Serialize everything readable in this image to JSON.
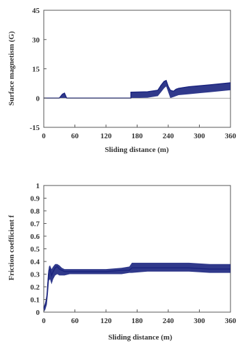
{
  "chart_data": [
    {
      "type": "line",
      "xlabel": "Sliding distance (m)",
      "ylabel": "Surface magnetism (G)",
      "xlim": [
        0,
        360
      ],
      "ylim": [
        -15,
        45
      ],
      "xticks": [
        0,
        60,
        120,
        180,
        240,
        300,
        360
      ],
      "yticks": [
        -15,
        0,
        15,
        30,
        45
      ],
      "color": "#1a237e",
      "series": [
        {
          "x": [
            0,
            30,
            36,
            40,
            44,
            60,
            120,
            140,
            168,
            168,
            200,
            220,
            226,
            232,
            236,
            240,
            244,
            250,
            255,
            260,
            280,
            300,
            320,
            340,
            360
          ],
          "y": [
            0,
            0,
            2.0,
            2.5,
            0,
            0,
            0,
            0,
            0,
            3.0,
            3.2,
            4.0,
            6.5,
            8.5,
            9.0,
            6.0,
            4.0,
            3.5,
            4.5,
            5.0,
            5.8,
            6.3,
            6.8,
            7.3,
            7.8
          ],
          "y_low": [
            0,
            0,
            0,
            0,
            0,
            0,
            0,
            0,
            0,
            0,
            0.2,
            1.0,
            3.0,
            5.0,
            6.0,
            3.0,
            0,
            0.5,
            1.0,
            1.5,
            2.0,
            2.5,
            3.0,
            3.5,
            4.0
          ]
        }
      ]
    },
    {
      "type": "line",
      "xlabel": "Sliding distance (m)",
      "ylabel": "Friction coefficient f",
      "xlim": [
        0,
        360
      ],
      "ylim": [
        0,
        1
      ],
      "xticks": [
        0,
        60,
        120,
        180,
        240,
        300,
        360
      ],
      "yticks": [
        0,
        0.1,
        0.2,
        0.3,
        0.4,
        0.5,
        0.6,
        0.7,
        0.8,
        0.9,
        1
      ],
      "color": "#1a237e",
      "series": [
        {
          "x": [
            0,
            3,
            6,
            8,
            10,
            12,
            15,
            18,
            22,
            26,
            30,
            35,
            40,
            50,
            60,
            90,
            120,
            150,
            165,
            170,
            200,
            240,
            280,
            320,
            360
          ],
          "y": [
            0.03,
            0.06,
            0.12,
            0.24,
            0.33,
            0.34,
            0.29,
            0.32,
            0.35,
            0.36,
            0.34,
            0.33,
            0.32,
            0.32,
            0.32,
            0.32,
            0.32,
            0.33,
            0.33,
            0.35,
            0.35,
            0.35,
            0.35,
            0.34,
            0.34
          ],
          "y_low": [
            0.0,
            0.02,
            0.06,
            0.15,
            0.25,
            0.26,
            0.22,
            0.26,
            0.29,
            0.3,
            0.29,
            0.29,
            0.29,
            0.3,
            0.3,
            0.3,
            0.3,
            0.3,
            0.31,
            0.31,
            0.32,
            0.32,
            0.32,
            0.31,
            0.31
          ],
          "y_high": [
            0.04,
            0.08,
            0.15,
            0.3,
            0.36,
            0.37,
            0.34,
            0.36,
            0.38,
            0.38,
            0.37,
            0.35,
            0.34,
            0.34,
            0.34,
            0.34,
            0.34,
            0.35,
            0.36,
            0.39,
            0.39,
            0.39,
            0.39,
            0.38,
            0.38
          ]
        }
      ]
    }
  ]
}
